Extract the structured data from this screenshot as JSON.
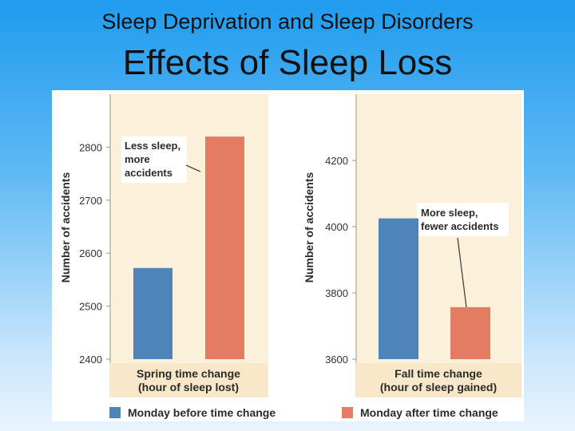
{
  "slide": {
    "subtitle": "Sleep Deprivation and Sleep Disorders",
    "title": "Effects of Sleep Loss"
  },
  "chart_data": [
    {
      "type": "bar",
      "ylabel": "Number of accidents",
      "xlabel_line1": "Spring time change",
      "xlabel_line2": "(hour of sleep lost)",
      "ylim": [
        2400,
        2900
      ],
      "yticks": [
        2400,
        2500,
        2600,
        2700,
        2800
      ],
      "categories": [
        "Monday before time change",
        "Monday after time change"
      ],
      "values": [
        2572,
        2820
      ],
      "colors": [
        "#4e84b8",
        "#e37c62"
      ],
      "annotation": [
        "Less sleep,",
        "more",
        "accidents"
      ]
    },
    {
      "type": "bar",
      "ylabel": "Number of accidents",
      "xlabel_line1": "Fall time change",
      "xlabel_line2": "(hour of sleep gained)",
      "ylim": [
        3600,
        4400
      ],
      "yticks": [
        3600,
        3800,
        4000,
        4200
      ],
      "categories": [
        "Monday before time change",
        "Monday after time change"
      ],
      "values": [
        4025,
        3757
      ],
      "colors": [
        "#4e84b8",
        "#e37c62"
      ],
      "annotation": [
        "More sleep,",
        "fewer accidents"
      ]
    }
  ],
  "legend": {
    "before": "Monday before time change",
    "after": "Monday after time change",
    "before_color": "#4e84b8",
    "after_color": "#e37c62"
  }
}
